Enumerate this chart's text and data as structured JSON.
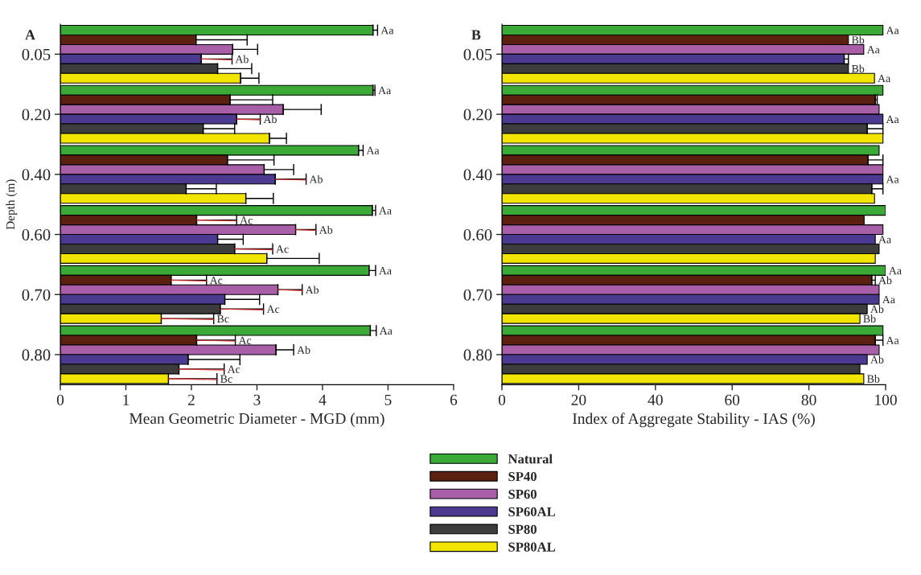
{
  "chart_data": [
    {
      "type": "bar",
      "orientation": "horizontal",
      "title": "A",
      "xlabel": "Mean Geometric Diameter - MGD (mm)",
      "ylabel": "Depth (m)",
      "categories": [
        "0.05",
        "0.20",
        "0.40",
        "0.60",
        "0.70",
        "0.80"
      ],
      "xlim": [
        0,
        6
      ],
      "xticks": [
        0,
        1,
        2,
        3,
        4,
        5,
        6
      ],
      "legend": "bottom",
      "series": [
        {
          "name": "Natural",
          "color": "#3aa935",
          "values": [
            4.77,
            4.77,
            4.55,
            4.76,
            4.71,
            4.73
          ],
          "errors": [
            0.07,
            0.03,
            0.07,
            0.05,
            0.1,
            0.09
          ],
          "value_labels": [
            "Aa",
            "Aa",
            "Aa",
            "Aa",
            "Aa",
            "Aa"
          ]
        },
        {
          "name": "SP40",
          "color": "#5c2010",
          "values": [
            2.07,
            2.59,
            2.55,
            2.08,
            1.69,
            2.08
          ],
          "errors": [
            0.78,
            0.65,
            0.71,
            0.61,
            0.54,
            0.59
          ],
          "value_labels": [
            null,
            null,
            null,
            "Ac",
            "Ac",
            "Ac"
          ]
        },
        {
          "name": "SP60",
          "color": "#a85fa8",
          "values": [
            2.63,
            3.4,
            3.11,
            3.59,
            3.32,
            3.29
          ],
          "errors": [
            0.38,
            0.58,
            0.45,
            0.31,
            0.37,
            0.27
          ],
          "value_labels": [
            null,
            null,
            null,
            "Ab",
            "Ab",
            "Ab"
          ]
        },
        {
          "name": "SP60AL",
          "color": "#4b3a8f",
          "values": [
            2.15,
            2.69,
            3.28,
            2.4,
            2.51,
            1.95
          ],
          "errors": [
            0.47,
            0.36,
            0.47,
            0.39,
            0.53,
            0.79
          ],
          "value_labels": [
            "Ab",
            "Ab",
            "Ab",
            null,
            null,
            null
          ]
        },
        {
          "name": "SP80",
          "color": "#3d3d3d",
          "values": [
            2.4,
            2.18,
            1.92,
            2.66,
            2.44,
            1.81
          ],
          "errors": [
            0.52,
            0.48,
            0.46,
            0.58,
            0.66,
            0.69
          ],
          "value_labels": [
            null,
            null,
            null,
            "Ac",
            "Ac",
            "Ac"
          ]
        },
        {
          "name": "SP80AL",
          "color": "#f2e600",
          "values": [
            2.75,
            3.19,
            2.83,
            3.15,
            1.54,
            1.65
          ],
          "errors": [
            0.28,
            0.26,
            0.42,
            0.8,
            0.8,
            0.74
          ],
          "value_labels": [
            null,
            null,
            null,
            null,
            "Bc",
            "Bc"
          ]
        }
      ]
    },
    {
      "type": "bar",
      "orientation": "horizontal",
      "title": "B",
      "xlabel": "Index of Aggregate Stability - IAS (%)",
      "categories": [
        "0.05",
        "0.20",
        "0.40",
        "0.60",
        "0.70",
        "0.80"
      ],
      "xlim": [
        0,
        100
      ],
      "xticks": [
        0,
        20,
        40,
        60,
        80,
        100
      ],
      "series": [
        {
          "color": "#3aa935",
          "values": [
            99.3,
            99.3,
            98.3,
            100,
            100,
            99.3
          ],
          "value_labels": [
            "Aa",
            null,
            null,
            null,
            "Aa",
            null
          ]
        },
        {
          "color": "#5c2010",
          "values": [
            90.3,
            97.3,
            95.4,
            94.4,
            96.4,
            97.3
          ],
          "errors": [
            null,
            0.5,
            3.9,
            null,
            0.9,
            2.0
          ],
          "value_labels": [
            "Bb",
            null,
            null,
            null,
            "Ab",
            "Aa"
          ]
        },
        {
          "color": "#a85fa8",
          "values": [
            94.3,
            98.3,
            99.3,
            99.3,
            98.3,
            98.3
          ],
          "value_labels": [
            "Aa",
            null,
            null,
            null,
            null,
            null
          ]
        },
        {
          "color": "#4b3a8f",
          "values": [
            89.2,
            99.3,
            99.3,
            97.3,
            98.3,
            95.2
          ],
          "errors": [
            1.1,
            null,
            null,
            null,
            null,
            null
          ],
          "value_labels": [
            null,
            "Aa",
            "Aa",
            "Aa",
            "Aa",
            "Ab"
          ]
        },
        {
          "color": "#3d3d3d",
          "values": [
            90.3,
            95.2,
            96.4,
            98.3,
            95.2,
            93.3
          ],
          "errors": [
            null,
            4.1,
            2.9,
            null,
            null,
            null
          ],
          "value_labels": [
            "Bb",
            null,
            null,
            null,
            "Ab",
            null
          ]
        },
        {
          "color": "#f2e600",
          "values": [
            97.1,
            99.3,
            97.1,
            97.3,
            93.3,
            94.3
          ],
          "value_labels": [
            "Aa",
            null,
            null,
            null,
            "Bb",
            "Bb"
          ]
        }
      ]
    }
  ]
}
